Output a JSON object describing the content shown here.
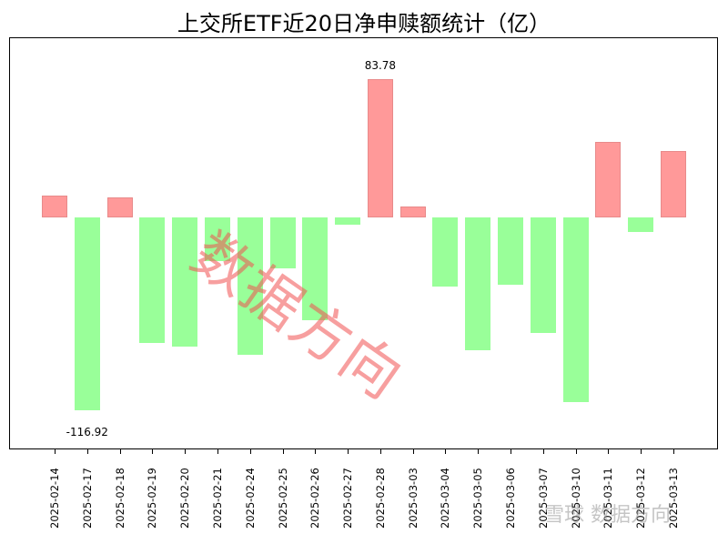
{
  "chart_data": {
    "type": "bar",
    "title": "上交所ETF近20日净申赎额统计（亿）",
    "xlabel": "",
    "ylabel": "",
    "categories": [
      "2025-02-14",
      "2025-02-17",
      "2025-02-18",
      "2025-02-19",
      "2025-02-20",
      "2025-02-21",
      "2025-02-24",
      "2025-02-25",
      "2025-02-26",
      "2025-02-27",
      "2025-02-28",
      "2025-03-03",
      "2025-03-04",
      "2025-03-05",
      "2025-03-06",
      "2025-03-07",
      "2025-03-10",
      "2025-03-11",
      "2025-03-12",
      "2025-03-13"
    ],
    "values": [
      13.2,
      -116.92,
      12.1,
      -76.1,
      -78.3,
      -26.5,
      -83.2,
      -30.9,
      -62.3,
      -4.4,
      83.78,
      6.6,
      -41.9,
      -80.5,
      -40.8,
      -70.0,
      -111.9,
      45.7,
      -8.8,
      40.2
    ],
    "annotations": [
      {
        "category": "2025-02-28",
        "text": "83.78",
        "note": "max"
      },
      {
        "category": "2025-02-17",
        "text": "-116.92",
        "note": "min"
      }
    ],
    "colors": {
      "positive": "#ff9999",
      "negative": "#99ff99"
    },
    "ylim": [
      -140,
      110
    ],
    "grid": false,
    "legend": null,
    "y_axis_visible": false
  },
  "watermarks": {
    "center": "数据方向",
    "corner": "雪球 数据方向"
  }
}
